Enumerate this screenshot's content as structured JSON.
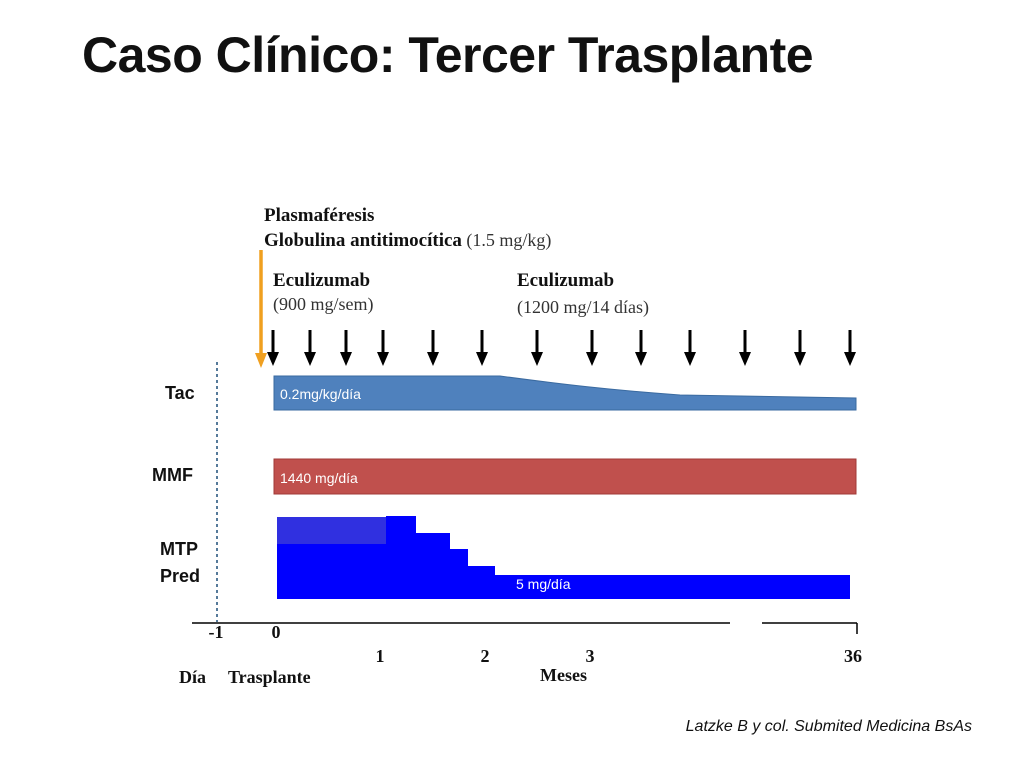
{
  "title": "Caso Clínico: Tercer Trasplante",
  "annotations": {
    "plasmapheresis": "Plasmaféresis",
    "atg": "Globulina antitimocítica",
    "atg_dose": "(1.5 mg/kg)",
    "eculizumab_1": "Eculizumab",
    "eculizumab_1_dose": "(900 mg/sem)",
    "eculizumab_2": "Eculizumab",
    "eculizumab_2_dose": "(1200 mg/14 días)"
  },
  "rows": {
    "tac_label": "Tac",
    "mmf_label": "MMF",
    "mtp_label": "MTP",
    "pred_label": "Pred"
  },
  "bars": {
    "tac_text": "0.2mg/kg/día",
    "mmf_text": "1440 mg/día",
    "pred_text": "5 mg/día"
  },
  "axis": {
    "ticks": [
      "-1",
      "0",
      "1",
      "2",
      "3",
      "36"
    ],
    "dia_label": "Día",
    "transplant_label": "Trasplante",
    "months_label": "Meses"
  },
  "colors": {
    "tac": "#4f81bd",
    "mmf": "#c0504d",
    "pred": "#0000ff",
    "orange_arrow": "#f0a020"
  },
  "citation": "Latzke B y col. Submited Medicina BsAs"
}
